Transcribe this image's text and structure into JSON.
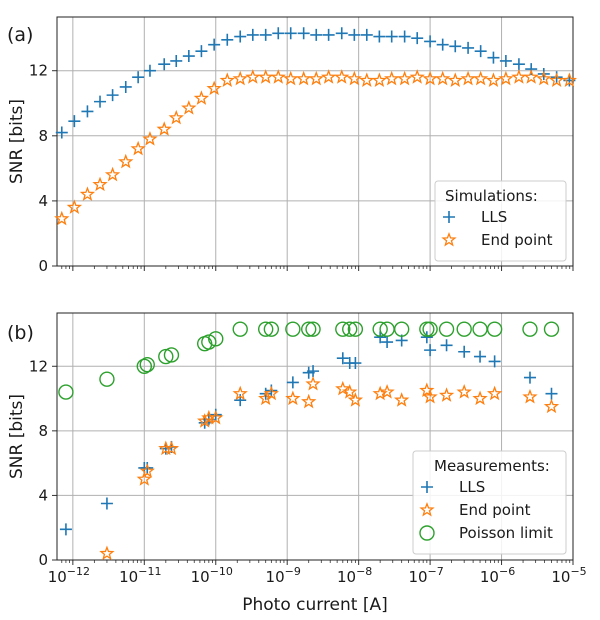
{
  "chart_data": [
    {
      "type": "scatter",
      "panel_label": "(a)",
      "xlabel": "",
      "ylabel": "SNR [bits]",
      "x_scale": "log",
      "xlim": [
        6e-13,
        1e-05
      ],
      "ylim": [
        0,
        15.3
      ],
      "yticks": [
        0,
        4,
        8,
        12
      ],
      "grid": true,
      "legend": {
        "title": "Simulations:",
        "position": "bottom-right"
      },
      "series": [
        {
          "name": "LLS",
          "marker": "plus",
          "color": "#1f77b4",
          "x": [
            7e-13,
            1.05e-12,
            1.6e-12,
            2.4e-12,
            3.6e-12,
            5.5e-12,
            8.2e-12,
            1.2e-11,
            1.9e-11,
            2.8e-11,
            4.2e-11,
            6.3e-11,
            9.5e-11,
            1.45e-10,
            2.2e-10,
            3.3e-10,
            5e-10,
            7.5e-10,
            1.12e-09,
            1.7e-09,
            2.55e-09,
            3.8e-09,
            5.8e-09,
            8.7e-09,
            1.3e-08,
            1.95e-08,
            2.9e-08,
            4.4e-08,
            6.6e-08,
            1e-07,
            1.5e-07,
            2.25e-07,
            3.4e-07,
            5.1e-07,
            7.7e-07,
            1.15e-06,
            1.75e-06,
            2.6e-06,
            3.9e-06,
            5.9e-06,
            8.9e-06
          ],
          "y": [
            8.2,
            8.9,
            9.5,
            10.1,
            10.5,
            11.0,
            11.6,
            12.0,
            12.4,
            12.6,
            12.9,
            13.2,
            13.6,
            13.9,
            14.1,
            14.2,
            14.2,
            14.3,
            14.3,
            14.3,
            14.2,
            14.2,
            14.3,
            14.2,
            14.2,
            14.1,
            14.1,
            14.1,
            14.0,
            13.8,
            13.6,
            13.5,
            13.4,
            13.2,
            12.8,
            12.6,
            12.4,
            12.1,
            11.8,
            11.6,
            11.4
          ]
        },
        {
          "name": "End point",
          "marker": "star",
          "color": "#ff7f0e",
          "x": [
            7e-13,
            1.05e-12,
            1.6e-12,
            2.4e-12,
            3.6e-12,
            5.5e-12,
            8.2e-12,
            1.2e-11,
            1.9e-11,
            2.8e-11,
            4.2e-11,
            6.3e-11,
            9.5e-11,
            1.45e-10,
            2.2e-10,
            3.3e-10,
            5e-10,
            7.5e-10,
            1.12e-09,
            1.7e-09,
            2.55e-09,
            3.8e-09,
            5.8e-09,
            8.7e-09,
            1.3e-08,
            1.95e-08,
            2.9e-08,
            4.4e-08,
            6.6e-08,
            1e-07,
            1.5e-07,
            2.25e-07,
            3.4e-07,
            5.1e-07,
            7.7e-07,
            1.15e-06,
            1.75e-06,
            2.6e-06,
            3.9e-06,
            5.9e-06,
            8.9e-06
          ],
          "y": [
            2.9,
            3.6,
            4.4,
            5.0,
            5.6,
            6.4,
            7.2,
            7.8,
            8.4,
            9.1,
            9.7,
            10.3,
            10.9,
            11.4,
            11.5,
            11.6,
            11.6,
            11.6,
            11.5,
            11.5,
            11.5,
            11.6,
            11.6,
            11.5,
            11.4,
            11.4,
            11.5,
            11.5,
            11.6,
            11.5,
            11.5,
            11.4,
            11.5,
            11.5,
            11.4,
            11.5,
            11.6,
            11.6,
            11.5,
            11.4,
            11.4
          ]
        }
      ]
    },
    {
      "type": "scatter",
      "panel_label": "(b)",
      "xlabel": "Photo current [A]",
      "ylabel": "SNR [bits]",
      "x_scale": "log",
      "xlim": [
        6e-13,
        1e-05
      ],
      "xticks": [
        1e-12,
        1e-11,
        1e-10,
        1e-09,
        1e-08,
        1e-07,
        1e-06,
        1e-05
      ],
      "xtick_exponents": [
        "−12",
        "−11",
        "−10",
        "−9",
        "−8",
        "−7",
        "−6",
        "−5"
      ],
      "xtick_base": "10",
      "ylim": [
        0,
        15.3
      ],
      "yticks": [
        0,
        4,
        8,
        12
      ],
      "grid": true,
      "legend": {
        "title": "Measurements:",
        "position": "bottom-right"
      },
      "series": [
        {
          "name": "LLS",
          "marker": "plus",
          "color": "#1f77b4",
          "x": [
            8e-13,
            3e-12,
            1e-11,
            1.1e-11,
            2e-11,
            2.4e-11,
            7e-11,
            8e-11,
            1e-10,
            2.2e-10,
            5e-10,
            6e-10,
            1.2e-09,
            2e-09,
            2.3e-09,
            6e-09,
            7.5e-09,
            9e-09,
            2e-08,
            2.5e-08,
            4e-08,
            9e-08,
            1e-07,
            1.7e-07,
            3e-07,
            5e-07,
            8e-07,
            2.5e-06,
            5e-06
          ],
          "y": [
            1.9,
            3.5,
            5.7,
            5.7,
            6.9,
            7.0,
            8.5,
            8.7,
            9.0,
            9.9,
            10.3,
            10.5,
            11.0,
            11.6,
            11.7,
            12.5,
            12.2,
            12.2,
            13.8,
            13.5,
            13.6,
            13.8,
            13.0,
            13.3,
            12.9,
            12.6,
            12.3,
            11.3,
            10.3
          ]
        },
        {
          "name": "End point",
          "marker": "star",
          "color": "#ff7f0e",
          "x": [
            3e-12,
            1e-11,
            1.1e-11,
            2e-11,
            2.4e-11,
            7e-11,
            8e-11,
            1e-10,
            2.2e-10,
            5e-10,
            6e-10,
            1.2e-09,
            2e-09,
            2.3e-09,
            6e-09,
            7.5e-09,
            9e-09,
            2e-08,
            2.5e-08,
            4e-08,
            9e-08,
            1e-07,
            1.7e-07,
            3e-07,
            5e-07,
            8e-07,
            2.5e-06,
            5e-06
          ],
          "y": [
            0.4,
            5.0,
            5.5,
            6.9,
            6.9,
            8.6,
            8.8,
            8.8,
            10.3,
            10.0,
            10.3,
            10.0,
            9.8,
            10.9,
            10.6,
            10.4,
            9.9,
            10.3,
            10.4,
            9.9,
            10.5,
            10.1,
            10.2,
            10.4,
            10.0,
            10.3,
            10.1,
            9.5
          ]
        },
        {
          "name": "Poisson limit",
          "marker": "circle",
          "color": "#2ca02c",
          "x": [
            8e-13,
            3e-12,
            1e-11,
            1.1e-11,
            2e-11,
            2.4e-11,
            7e-11,
            8e-11,
            1e-10,
            2.2e-10,
            5e-10,
            6e-10,
            1.2e-09,
            2e-09,
            2.3e-09,
            6e-09,
            7.5e-09,
            9e-09,
            2e-08,
            2.5e-08,
            4e-08,
            9e-08,
            1e-07,
            1.7e-07,
            3e-07,
            5e-07,
            8e-07,
            2.5e-06,
            5e-06
          ],
          "y": [
            10.4,
            11.2,
            12.0,
            12.1,
            12.6,
            12.7,
            13.4,
            13.5,
            13.7,
            14.3,
            14.3,
            14.3,
            14.3,
            14.3,
            14.3,
            14.3,
            14.3,
            14.3,
            14.3,
            14.3,
            14.3,
            14.3,
            14.3,
            14.3,
            14.3,
            14.3,
            14.3,
            14.3,
            14.3
          ]
        }
      ]
    }
  ]
}
